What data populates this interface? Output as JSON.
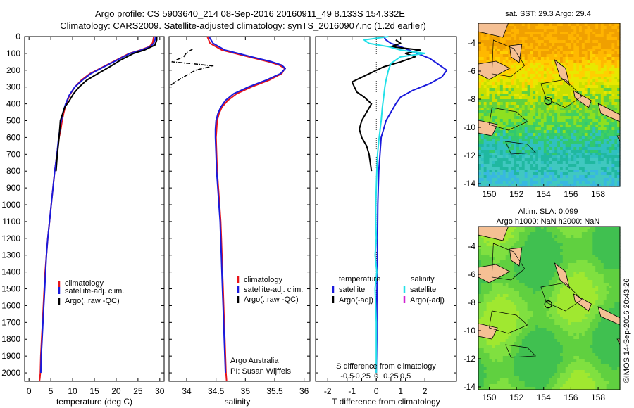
{
  "header": {
    "line1": "Argo profile: CS 5903640_214 08-Sep-2016 20160911_49 8.133S 154.332E",
    "line2": "Climatology: CARS2009. Satellite-adjusted climatology: synTS_20160907.nc (1.2d earlier)"
  },
  "colors": {
    "climatology": "#e8141a",
    "satellite": "#1a1adc",
    "argo": "#000000",
    "sat_salinity": "#22e0e8",
    "argo_adj_sal": "#d020d0"
  },
  "depth_axis": {
    "min": 0,
    "max": 2050,
    "ticks": [
      0,
      100,
      200,
      300,
      400,
      500,
      600,
      700,
      800,
      900,
      1000,
      1100,
      1200,
      1300,
      1400,
      1500,
      1600,
      1700,
      1800,
      1900,
      2000
    ]
  },
  "panels": {
    "temperature": {
      "xlabel": "temperature (deg C)",
      "xlim": [
        -1,
        31
      ],
      "xticks": [
        0,
        5,
        10,
        15,
        20,
        25,
        30
      ],
      "legend": [
        "climatology",
        "satellite-adj. clim.",
        "Argo(..raw -QC)"
      ]
    },
    "salinity": {
      "xlabel": "salinity",
      "xlim": [
        33.7,
        36.1
      ],
      "xticks": [
        34,
        34.5,
        35,
        35.5,
        36
      ],
      "xtick_labels": [
        "34",
        "34.5",
        "35",
        "35.5",
        "36"
      ],
      "legend": [
        "climatology",
        "satellite-adj. clim.",
        "Argo(..raw -QC)"
      ],
      "note1": "Argo Australia",
      "note2": "PI: Susan Wijffels"
    },
    "difference": {
      "xlabel": "T difference from climatology",
      "xlim": [
        -2.5,
        3.3
      ],
      "xticks": [
        -2,
        -1,
        0,
        1,
        2
      ],
      "top_label": "S difference from climatology",
      "sticks": [
        -0.5,
        -0.25,
        0,
        0.25,
        0.5
      ],
      "stick_labels": [
        "-0.5",
        "-0.25",
        "0",
        "0.25",
        "0.5"
      ],
      "legend_t_title": "temperature",
      "legend_s_title": "salinity",
      "legend_t": [
        "satellite",
        "Argo(-adj)"
      ],
      "legend_s": [
        "satellite",
        "Argo(-adj)"
      ]
    }
  },
  "maps": {
    "sst": {
      "title": "sat. SST: 29.3 Argo: 29.4"
    },
    "sla": {
      "title1": "Altim. SLA: 0.099",
      "title2": "Argo h1000: NaN h2000: NaN"
    },
    "xticks": [
      150,
      152,
      154,
      156,
      158
    ],
    "yticks": [
      -4,
      -6,
      -8,
      -10,
      -12,
      -14
    ],
    "profile_lon": 154.332,
    "profile_lat": -8.133
  },
  "chart_data": [
    {
      "type": "line",
      "title": "",
      "xlabel": "temperature (deg C)",
      "ylabel": "",
      "xlim": [
        -1,
        31
      ],
      "ylim": [
        2050,
        0
      ],
      "series": [
        {
          "name": "climatology",
          "x": [
            28.6,
            28.5,
            28.3,
            27.6,
            25.6,
            23.0,
            20.0,
            17.0,
            14.0,
            12.0,
            10.5,
            9.3,
            8.5,
            8.0,
            7.6,
            7.3,
            6.9,
            6.4,
            5.9,
            5.5,
            5.1,
            4.7,
            4.3,
            4.0,
            3.7,
            3.5,
            3.3,
            3.1,
            2.9,
            2.7,
            2.6,
            2.5,
            2.4
          ],
          "y": [
            0,
            20,
            40,
            60,
            80,
            100,
            140,
            180,
            220,
            260,
            300,
            350,
            400,
            450,
            500,
            550,
            600,
            700,
            800,
            900,
            1000,
            1100,
            1200,
            1300,
            1400,
            1500,
            1600,
            1700,
            1800,
            1900,
            2000,
            2030,
            2050
          ]
        },
        {
          "name": "satellite-adj. clim.",
          "x": [
            29.0,
            28.9,
            28.6,
            27.8,
            25.8,
            23.2,
            20.2,
            17.2,
            14.2,
            12.2,
            10.5,
            9.2,
            8.4,
            7.8,
            7.4,
            7.1,
            6.8,
            6.4,
            5.9,
            5.5,
            5.1,
            4.7,
            4.3,
            4.0,
            3.8,
            3.6,
            3.4,
            3.2,
            3.0,
            2.8,
            2.7
          ],
          "y": [
            0,
            20,
            40,
            60,
            80,
            100,
            140,
            180,
            220,
            260,
            300,
            350,
            400,
            450,
            500,
            550,
            600,
            700,
            800,
            900,
            1000,
            1100,
            1200,
            1300,
            1400,
            1500,
            1600,
            1700,
            1800,
            1900,
            2000
          ]
        },
        {
          "name": "Argo(..raw -QC)",
          "x": [
            29.3,
            29.3,
            28.9,
            26.5,
            24.0,
            21.0,
            18.5,
            15.8,
            13.2,
            11.5,
            10.2,
            9.3,
            8.2,
            7.2,
            6.9,
            6.5,
            6.2
          ],
          "y": [
            0,
            20,
            50,
            80,
            100,
            140,
            180,
            220,
            260,
            300,
            340,
            380,
            420,
            500,
            600,
            700,
            800
          ]
        }
      ]
    },
    {
      "type": "line",
      "title": "",
      "xlabel": "salinity",
      "ylabel": "",
      "xlim": [
        33.7,
        36.1
      ],
      "ylim": [
        2050,
        0
      ],
      "series": [
        {
          "name": "climatology",
          "x": [
            34.35,
            34.4,
            34.6,
            35.05,
            35.4,
            35.58,
            35.67,
            35.62,
            35.4,
            35.1,
            34.85,
            34.7,
            34.6,
            34.55,
            34.52,
            34.51,
            34.5,
            34.51,
            34.52,
            34.54,
            34.56,
            34.58,
            34.59,
            34.6,
            34.61,
            34.62,
            34.63,
            34.64,
            34.65,
            34.66,
            34.67,
            34.68
          ],
          "y": [
            0,
            40,
            80,
            120,
            150,
            170,
            190,
            220,
            260,
            300,
            340,
            380,
            420,
            460,
            500,
            550,
            600,
            700,
            800,
            900,
            1000,
            1100,
            1200,
            1300,
            1400,
            1500,
            1600,
            1700,
            1800,
            1900,
            2000,
            2050
          ]
        },
        {
          "name": "satellite-adj. clim.",
          "x": [
            34.38,
            34.45,
            34.65,
            35.1,
            35.45,
            35.62,
            35.68,
            35.6,
            35.35,
            35.05,
            34.8,
            34.66,
            34.58,
            34.53,
            34.5,
            34.49,
            34.49,
            34.5,
            34.51,
            34.53,
            34.55,
            34.57,
            34.58,
            34.59,
            34.6,
            34.61,
            34.62,
            34.63,
            34.64,
            34.65,
            34.66
          ],
          "y": [
            0,
            40,
            80,
            120,
            150,
            170,
            190,
            220,
            260,
            300,
            340,
            380,
            420,
            460,
            500,
            550,
            600,
            700,
            800,
            900,
            1000,
            1100,
            1200,
            1300,
            1400,
            1500,
            1600,
            1700,
            1800,
            1900,
            2000
          ]
        },
        {
          "name": "Argo(..raw -QC)",
          "x": [
            34.1,
            34.0,
            33.95,
            33.75,
            34.2,
            34.45,
            34.15,
            33.9,
            33.72
          ],
          "y": [
            75,
            95,
            120,
            150,
            165,
            175,
            200,
            250,
            290
          ]
        }
      ]
    },
    {
      "type": "line",
      "title": "",
      "xlabel": "T difference from climatology",
      "ylabel": "",
      "xlim": [
        -2.5,
        3.3
      ],
      "ylim": [
        2050,
        0
      ],
      "series": [
        {
          "name": "temperature satellite",
          "x": [
            0.3,
            0.4,
            0.6,
            1.0,
            1.5,
            2.2,
            2.6,
            2.9,
            2.7,
            2.2,
            1.5,
            1.0,
            0.8,
            0.6,
            0.4,
            0.3,
            0.2,
            0.15,
            0.1,
            0.08,
            0.06,
            0.05,
            0.04,
            0.03,
            0.02,
            0.02,
            0.01,
            0.0
          ],
          "y": [
            0,
            20,
            40,
            60,
            90,
            130,
            170,
            200,
            240,
            280,
            320,
            360,
            400,
            450,
            500,
            550,
            600,
            700,
            800,
            900,
            1000,
            1200,
            1400,
            1500,
            1600,
            1800,
            1900,
            2000
          ]
        },
        {
          "name": "temperature Argo(-adj)",
          "x": [
            0.8,
            1.0,
            0.6,
            1.8,
            1.2,
            1.6,
            1.0,
            0.3,
            -1.0,
            -0.8,
            -0.5,
            -0.2,
            -0.4,
            -0.6,
            -0.7,
            -0.6,
            -0.4,
            -0.3,
            -0.2
          ],
          "y": [
            20,
            40,
            60,
            80,
            100,
            120,
            150,
            180,
            270,
            330,
            360,
            400,
            450,
            500,
            550,
            600,
            650,
            700,
            800
          ]
        },
        {
          "name": "salinity satellite",
          "x": [
            0.5,
            -0.5,
            -0.3,
            0.5,
            1.0,
            2.0,
            1.0,
            0.6,
            0.5,
            0.4,
            0.35,
            0.3,
            0.25,
            0.2,
            0.15,
            0.1,
            0.05,
            0.02,
            0.0,
            -0.02,
            -0.02,
            0.0,
            -0.05,
            0.02,
            -0.05,
            0.0,
            0.0,
            0.0
          ],
          "y": [
            0,
            20,
            40,
            60,
            80,
            100,
            120,
            160,
            200,
            260,
            300,
            360,
            420,
            500,
            560,
            620,
            700,
            800,
            900,
            1000,
            1100,
            1200,
            1300,
            1400,
            1500,
            1700,
            1900,
            2000
          ]
        }
      ]
    }
  ]
}
